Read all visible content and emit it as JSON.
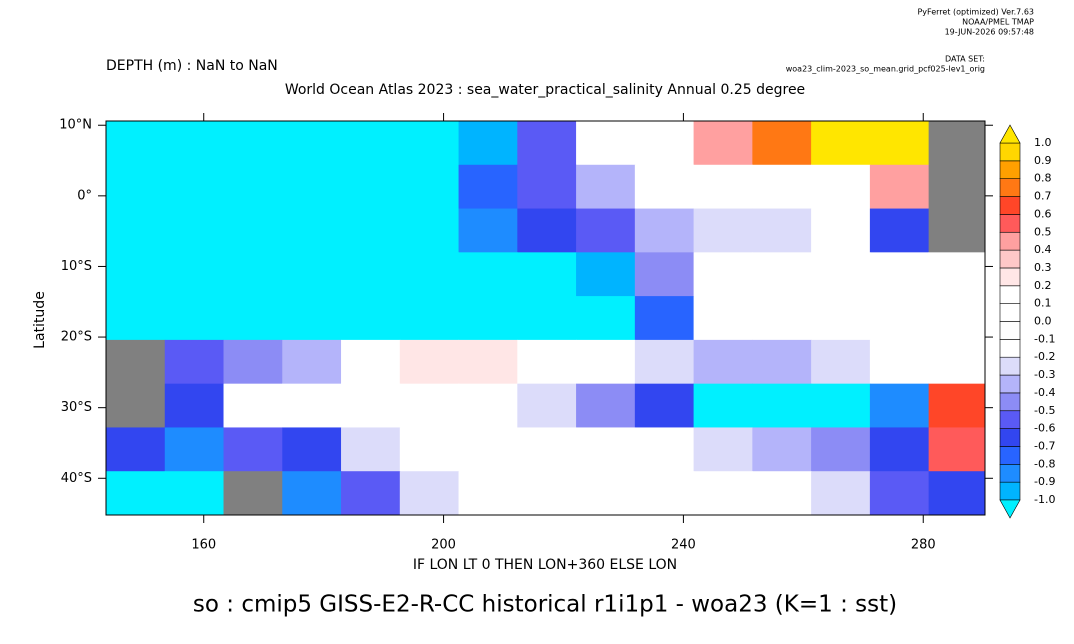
{
  "chart_data": {
    "type": "map",
    "header": [
      "PyFerret (optimized) Ver.7.63",
      "NOAA/PMEL TMAP",
      "19-JUN-2026 09:57:48"
    ],
    "dataset_label": "DATA SET:",
    "dataset": "woa23_clim-2023_so_mean.grid_pcf025-lev1_orig",
    "depth_label": "DEPTH (m) : NaN to NaN",
    "title": "World Ocean Atlas 2023 : sea_water_practical_salinity Annual  0.25 degree",
    "ylabel": "Latitude",
    "xlabel": "IF LON LT 0 THEN LON+360 ELSE LON",
    "caption": "so : cmip5 GISS-E2-R-CC historical r1i1p1 - woa23  (K=1 : sst)",
    "xlim": [
      143.7,
      290.3
    ],
    "ylim": [
      -45.2,
      10.6
    ],
    "xticks": [
      160,
      200,
      240,
      280
    ],
    "yticks": [
      {
        "value": 10,
        "label": "10°N"
      },
      {
        "value": 0,
        "label": "0°"
      },
      {
        "value": -10,
        "label": "10°S"
      },
      {
        "value": -20,
        "label": "20°S"
      },
      {
        "value": -30,
        "label": "30°S"
      },
      {
        "value": -40,
        "label": "40°S"
      }
    ],
    "lon_edges": [
      143.7,
      153.5,
      163.3,
      173.1,
      182.9,
      192.7,
      202.5,
      212.3,
      222.1,
      231.9,
      241.7,
      251.5,
      261.3,
      271.1,
      280.9,
      290.3
    ],
    "lat_edges": [
      10.6,
      4.4,
      -1.8,
      -8.0,
      -14.2,
      -20.4,
      -26.6,
      -32.8,
      -39.0,
      -45.2
    ],
    "values": [
      [
        -1.2,
        -1.2,
        -1.2,
        -1.2,
        -1.2,
        -1.2,
        -0.9,
        -0.5,
        -0.1,
        0,
        0.5,
        0.8,
        1.1,
        1.1,
        null
      ],
      [
        -1.2,
        -1.2,
        -1.2,
        -1.2,
        -1.2,
        -1.0,
        -0.7,
        -0.5,
        -0.3,
        -0.1,
        0,
        0,
        0.2,
        0.5,
        null
      ],
      [
        -1.2,
        -1.2,
        -1.2,
        -1.2,
        -1.2,
        -1.2,
        -0.8,
        -0.6,
        -0.5,
        -0.3,
        -0.2,
        -0.2,
        -0.1,
        -0.6,
        null
      ],
      [
        -1.2,
        -1.2,
        -1.2,
        -1.2,
        -1.2,
        -1.2,
        -1.2,
        -1.1,
        -0.9,
        -0.4,
        -0.1,
        0,
        0,
        0,
        0
      ],
      [
        -1.2,
        -1.2,
        -1.2,
        -1.2,
        -1.2,
        -1.2,
        -1.2,
        -1.2,
        -1.2,
        -0.7,
        0,
        0,
        0,
        0,
        0
      ],
      [
        null,
        -0.5,
        -0.4,
        -0.3,
        0.2,
        0.3,
        0.3,
        0,
        0,
        -0.2,
        -0.3,
        -0.3,
        -0.2,
        0,
        0
      ],
      [
        null,
        -0.6,
        0,
        0,
        0,
        0,
        0,
        -0.2,
        -0.4,
        -0.6,
        -1.1,
        -1.2,
        -1.2,
        -0.8,
        0.7
      ],
      [
        -0.6,
        -0.8,
        -0.5,
        -0.6,
        -0.2,
        0,
        0,
        0,
        0,
        -0.1,
        -0.2,
        -0.3,
        -0.4,
        -0.6,
        0.6
      ],
      [
        -1.1,
        -1.2,
        null,
        -0.8,
        -0.5,
        -0.2,
        0,
        -0.1,
        0,
        0,
        -0.1,
        -0.1,
        -0.2,
        -0.5,
        -0.6
      ]
    ],
    "missing_color": "#808080",
    "levels": [
      {
        "value": -1,
        "label": "-1.0"
      },
      -0.9,
      -0.8,
      -0.7,
      -0.6,
      -0.5,
      -0.4,
      -0.3,
      -0.2,
      -0.1,
      {
        "value": 0,
        "label": "0.0"
      },
      0.1,
      0.2,
      0.3,
      0.4,
      0.5,
      0.6,
      0.7,
      0.8,
      0.9,
      {
        "value": 1,
        "label": "1.0"
      }
    ],
    "colors": [
      "#00f0ff",
      "#00b4ff",
      "#1e8cff",
      "#2864ff",
      "#3246f0",
      "#5a5af5",
      "#8c8cf5",
      "#b4b4fa",
      "#dcdcfa",
      "#ffffff",
      "#ffffff",
      "#ffffff",
      "#ffffff",
      "#ffe6e6",
      "#ffc8c8",
      "#ffa0a0",
      "#ff5a5a",
      "#ff4628",
      "#ff7814",
      "#ffa000",
      "#ffd700",
      "#ffe600"
    ]
  }
}
